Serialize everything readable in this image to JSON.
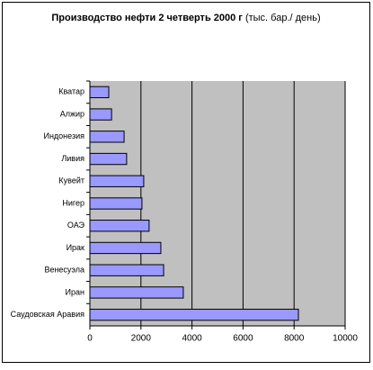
{
  "chart_data": {
    "type": "bar",
    "orientation": "horizontal",
    "title": "Производство нефти 2 четверть 2000 г",
    "subtitle": "(тыс. бар./ день)",
    "categories": [
      "Кватар",
      "Алжир",
      "Индонезия",
      "Ливия",
      "Кувейт",
      "Нигер",
      "ОАЭ",
      "Ирак",
      "Венесуэла",
      "Иран",
      "Саудовская Аравия"
    ],
    "values": [
      740,
      850,
      1340,
      1440,
      2110,
      2040,
      2320,
      2780,
      2890,
      3660,
      8170
    ],
    "color": "#9999ff",
    "xlim": [
      0,
      10000
    ],
    "xticks": [
      0,
      2000,
      4000,
      6000,
      8000,
      10000
    ],
    "grid": true
  }
}
